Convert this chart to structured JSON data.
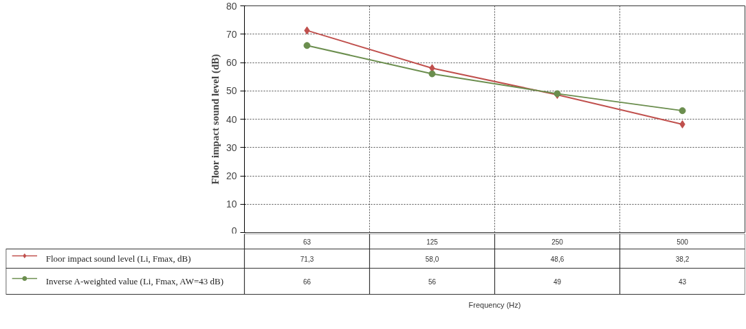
{
  "chart_data": {
    "type": "line",
    "ylabel": "Floor impact sound level (dB)",
    "annotations": [
      "Frequency (Hz)"
    ],
    "categories": [
      "63",
      "125",
      "250",
      "500"
    ],
    "series": [
      {
        "name": "Floor impact sound level (Li, Fmax, dB)",
        "color": "#c0504d",
        "marker": "diamond",
        "values": [
          71.3,
          58.0,
          48.6,
          38.2
        ],
        "value_labels": [
          "71,3",
          "58,0",
          "48,6",
          "38,2"
        ]
      },
      {
        "name": "Inverse A-weighted value (Li, Fmax, AW=43 dB)",
        "color": "#6b8e4e",
        "marker": "circle",
        "values": [
          66,
          56,
          49,
          43
        ],
        "value_labels": [
          "66",
          "56",
          "49",
          "43"
        ]
      }
    ],
    "ylim": [
      0,
      80
    ],
    "yticks": [
      0,
      10,
      20,
      30,
      40,
      50,
      60,
      70,
      80
    ],
    "grid": true,
    "legend": "bottom"
  }
}
